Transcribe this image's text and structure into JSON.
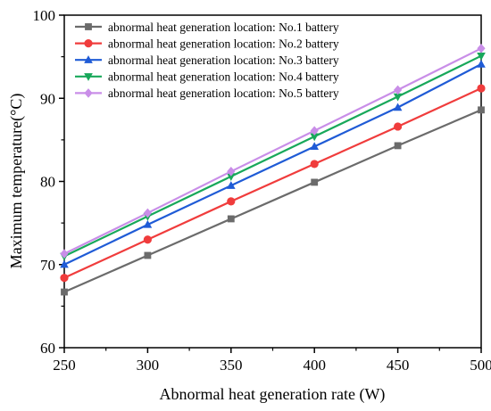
{
  "chart_data": {
    "type": "line",
    "xlabel": "Abnormal heat generation rate (W)",
    "ylabel": "Maximum temperature(°C)",
    "x": [
      250,
      300,
      350,
      400,
      450,
      500
    ],
    "xlim": [
      250,
      500
    ],
    "ylim": [
      60,
      100
    ],
    "xticks": [
      250,
      300,
      350,
      400,
      450,
      500
    ],
    "yticks": [
      60,
      70,
      80,
      90,
      100
    ],
    "grid": false,
    "legend_position": "top-left",
    "series": [
      {
        "name": "abnormal heat generation location: No.1 battery",
        "color": "#6b6b6b",
        "marker": "square",
        "values": [
          66.7,
          71.1,
          75.5,
          79.9,
          84.3,
          88.6
        ]
      },
      {
        "name": "abnormal heat generation location: No.2 battery",
        "color": "#f03c3c",
        "marker": "circle",
        "values": [
          68.4,
          73.0,
          77.6,
          82.1,
          86.6,
          91.2
        ]
      },
      {
        "name": "abnormal heat generation location: No.3 battery",
        "color": "#1f5bd6",
        "marker": "triangle-up",
        "values": [
          70.0,
          74.8,
          79.5,
          84.2,
          88.9,
          94.1
        ]
      },
      {
        "name": "abnormal heat generation location: No.4 battery",
        "color": "#18a85a",
        "marker": "triangle-down",
        "values": [
          71.0,
          75.8,
          80.6,
          85.4,
          90.2,
          95.1
        ]
      },
      {
        "name": "abnormal heat generation location: No.5 battery",
        "color": "#c98ee8",
        "marker": "diamond",
        "values": [
          71.3,
          76.2,
          81.2,
          86.1,
          91.0,
          96.0
        ]
      }
    ]
  }
}
